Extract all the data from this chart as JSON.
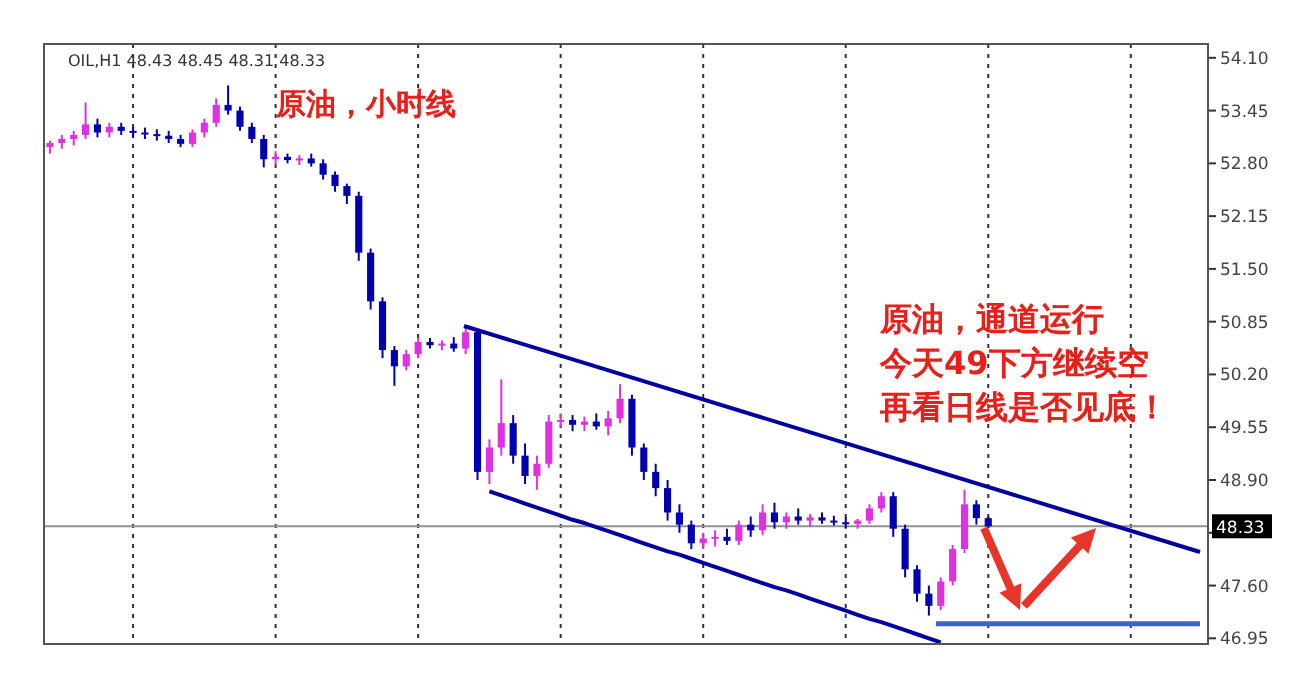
{
  "chart_data": {
    "type": "candlestick",
    "subtitle": "OIL,H1 48.43 48.45 48.31 48.33",
    "categories": [
      null,
      null,
      null,
      null,
      null,
      null,
      null,
      null,
      null,
      null,
      null,
      null,
      null,
      null,
      null,
      null,
      null,
      null,
      null,
      null,
      null,
      null,
      null,
      null,
      null,
      null,
      null,
      null,
      null,
      null,
      null,
      null,
      null,
      null,
      null,
      null,
      null,
      null,
      null,
      null,
      null,
      null,
      null,
      null,
      null,
      null,
      null,
      null,
      null,
      null,
      null,
      null,
      null,
      null,
      null,
      null,
      null,
      null,
      null,
      null,
      null,
      null,
      null,
      null,
      null,
      null,
      null,
      null,
      null,
      null,
      null,
      null,
      null,
      null,
      null,
      null,
      null,
      null,
      null,
      null,
      null,
      null,
      null,
      null,
      null,
      null,
      null,
      null,
      null,
      null,
      null,
      null,
      null,
      null,
      null,
      null,
      null,
      null
    ],
    "ohlc": [
      [
        53.0,
        53.08,
        52.92,
        53.05
      ],
      [
        53.05,
        53.15,
        52.98,
        53.1
      ],
      [
        53.1,
        53.2,
        53.02,
        53.15
      ],
      [
        53.15,
        53.55,
        53.1,
        53.28
      ],
      [
        53.28,
        53.35,
        53.12,
        53.18
      ],
      [
        53.18,
        53.3,
        53.12,
        53.25
      ],
      [
        53.25,
        53.3,
        53.15,
        53.2
      ],
      [
        53.2,
        53.25,
        53.12,
        53.18
      ],
      [
        53.18,
        53.24,
        53.1,
        53.16
      ],
      [
        53.16,
        53.22,
        53.08,
        53.14
      ],
      [
        53.14,
        53.2,
        53.05,
        53.1
      ],
      [
        53.1,
        53.15,
        53.0,
        53.04
      ],
      [
        53.04,
        53.22,
        53.0,
        53.18
      ],
      [
        53.18,
        53.35,
        53.12,
        53.3
      ],
      [
        53.3,
        53.6,
        53.25,
        53.52
      ],
      [
        53.52,
        53.76,
        53.4,
        53.45
      ],
      [
        53.45,
        53.5,
        53.2,
        53.25
      ],
      [
        53.25,
        53.3,
        53.05,
        53.1
      ],
      [
        53.1,
        53.15,
        52.75,
        52.85
      ],
      [
        52.85,
        52.95,
        52.78,
        52.88
      ],
      [
        52.88,
        52.92,
        52.8,
        52.84
      ],
      [
        52.84,
        52.9,
        52.78,
        52.86
      ],
      [
        52.86,
        52.92,
        52.76,
        52.8
      ],
      [
        52.8,
        52.85,
        52.6,
        52.66
      ],
      [
        52.66,
        52.7,
        52.45,
        52.52
      ],
      [
        52.52,
        52.55,
        52.3,
        52.4
      ],
      [
        52.4,
        52.45,
        51.6,
        51.7
      ],
      [
        51.7,
        51.75,
        51.0,
        51.1
      ],
      [
        51.1,
        51.15,
        50.4,
        50.5
      ],
      [
        50.5,
        50.55,
        50.06,
        50.3
      ],
      [
        50.3,
        50.5,
        50.25,
        50.45
      ],
      [
        50.45,
        50.65,
        50.4,
        50.6
      ],
      [
        50.6,
        50.65,
        50.52,
        50.56
      ],
      [
        50.56,
        50.62,
        50.5,
        50.58
      ],
      [
        50.58,
        50.66,
        50.48,
        50.52
      ],
      [
        50.52,
        50.8,
        50.45,
        50.72
      ],
      [
        50.72,
        50.76,
        48.9,
        49.0
      ],
      [
        49.0,
        49.4,
        48.85,
        49.3
      ],
      [
        49.3,
        50.14,
        49.2,
        49.6
      ],
      [
        49.6,
        49.7,
        49.1,
        49.2
      ],
      [
        49.2,
        49.35,
        48.85,
        48.95
      ],
      [
        48.95,
        49.2,
        48.78,
        49.1
      ],
      [
        49.1,
        49.7,
        49.05,
        49.62
      ],
      [
        49.62,
        49.72,
        49.55,
        49.64
      ],
      [
        49.64,
        49.7,
        49.5,
        49.58
      ],
      [
        49.58,
        49.68,
        49.5,
        49.62
      ],
      [
        49.62,
        49.72,
        49.52,
        49.56
      ],
      [
        49.56,
        49.75,
        49.45,
        49.66
      ],
      [
        49.66,
        50.08,
        49.6,
        49.9
      ],
      [
        49.9,
        49.95,
        49.2,
        49.3
      ],
      [
        49.3,
        49.35,
        48.9,
        49.0
      ],
      [
        49.0,
        49.1,
        48.7,
        48.8
      ],
      [
        48.8,
        48.9,
        48.4,
        48.5
      ],
      [
        48.5,
        48.6,
        48.25,
        48.35
      ],
      [
        48.35,
        48.4,
        48.05,
        48.12
      ],
      [
        48.12,
        48.25,
        48.05,
        48.18
      ],
      [
        48.18,
        48.28,
        48.08,
        48.2
      ],
      [
        48.2,
        48.3,
        48.1,
        48.15
      ],
      [
        48.15,
        48.4,
        48.1,
        48.35
      ],
      [
        48.35,
        48.45,
        48.2,
        48.28
      ],
      [
        48.28,
        48.6,
        48.22,
        48.5
      ],
      [
        48.5,
        48.62,
        48.3,
        48.38
      ],
      [
        48.38,
        48.5,
        48.3,
        48.45
      ],
      [
        48.45,
        48.55,
        48.35,
        48.4
      ],
      [
        48.4,
        48.48,
        48.32,
        48.44
      ],
      [
        48.44,
        48.5,
        48.36,
        48.4
      ],
      [
        48.4,
        48.46,
        48.34,
        48.38
      ],
      [
        48.38,
        48.44,
        48.3,
        48.36
      ],
      [
        48.36,
        48.42,
        48.3,
        48.4
      ],
      [
        48.4,
        48.6,
        48.36,
        48.55
      ],
      [
        48.55,
        48.75,
        48.5,
        48.7
      ],
      [
        48.7,
        48.75,
        48.2,
        48.3
      ],
      [
        48.3,
        48.35,
        47.7,
        47.8
      ],
      [
        47.8,
        47.85,
        47.4,
        47.5
      ],
      [
        47.5,
        47.6,
        47.23,
        47.35
      ],
      [
        47.35,
        47.7,
        47.3,
        47.65
      ],
      [
        47.65,
        48.1,
        47.6,
        48.05
      ],
      [
        48.05,
        48.78,
        48.0,
        48.6
      ],
      [
        48.6,
        48.65,
        48.35,
        48.43
      ],
      [
        48.43,
        48.45,
        48.31,
        48.33
      ],
      null,
      null,
      null,
      null,
      null,
      null,
      null,
      null,
      null,
      null,
      null,
      null,
      null,
      null,
      null,
      null,
      null,
      null
    ],
    "colors": [
      "#e030e0",
      "#e030e0",
      "#e030e0",
      "#e030e0",
      "#0000b0",
      "#e030e0",
      "#0000b0",
      "#0000b0",
      "#0000b0",
      "#0000b0",
      "#0000b0",
      "#0000b0",
      "#e030e0",
      "#e030e0",
      "#e030e0",
      "#0000b0",
      "#0000b0",
      "#0000b0",
      "#0000b0",
      "#e030e0",
      "#0000b0",
      "#e030e0",
      "#0000b0",
      "#0000b0",
      "#0000b0",
      "#0000b0",
      "#0000b0",
      "#0000b0",
      "#0000b0",
      "#0000b0",
      "#e030e0",
      "#e030e0",
      "#0000b0",
      "#e030e0",
      "#0000b0",
      "#e030e0",
      "#0000b0",
      "#e030e0",
      "#e030e0",
      "#0000b0",
      "#0000b0",
      "#e030e0",
      "#e030e0",
      "#e030e0",
      "#0000b0",
      "#e030e0",
      "#0000b0",
      "#e030e0",
      "#e030e0",
      "#0000b0",
      "#0000b0",
      "#0000b0",
      "#0000b0",
      "#0000b0",
      "#0000b0",
      "#e030e0",
      "#e030e0",
      "#0000b0",
      "#e030e0",
      "#0000b0",
      "#e030e0",
      "#0000b0",
      "#e030e0",
      "#0000b0",
      "#e030e0",
      "#0000b0",
      "#0000b0",
      "#0000b0",
      "#e030e0",
      "#e030e0",
      "#e030e0",
      "#0000b0",
      "#0000b0",
      "#0000b0",
      "#0000b0",
      "#e030e0",
      "#e030e0",
      "#e030e0",
      "#0000b0",
      "#0000b0",
      null,
      null,
      null,
      null,
      null,
      null,
      null,
      null,
      null,
      null,
      null,
      null,
      null,
      null,
      null,
      null,
      null,
      null
    ],
    "ylim": [
      46.88,
      54.27
    ],
    "yticks": [
      {
        "value": 46.95,
        "label": "46.95"
      },
      {
        "value": 47.6,
        "label": "47.60"
      },
      {
        "value": 48.25,
        "label": null
      },
      {
        "value": 48.9,
        "label": "48.90"
      },
      {
        "value": 49.55,
        "label": "49.55"
      },
      {
        "value": 50.2,
        "label": "50.20"
      },
      {
        "value": 50.85,
        "label": "50.85"
      },
      {
        "value": 51.5,
        "label": "51.50"
      },
      {
        "value": 52.15,
        "label": "52.15"
      },
      {
        "value": 52.8,
        "label": "52.80"
      },
      {
        "value": 53.45,
        "label": "53.45"
      },
      {
        "value": 54.1,
        "label": "54.10"
      }
    ],
    "tick_labels": "y",
    "grid": "x",
    "ref_lines": [
      {
        "axis": "y",
        "value": 48.33,
        "label": "48.33",
        "color": "#909090"
      },
      {
        "axis": "y",
        "value": 47.13,
        "color": "#4060d0"
      }
    ],
    "series": [
      {
        "type": "line",
        "color": "#0000a0",
        "values": [
          null,
          null,
          null,
          null,
          null,
          null,
          null,
          null,
          null,
          null,
          null,
          null,
          null,
          null,
          null,
          null,
          null,
          null,
          null,
          null,
          null,
          null,
          null,
          null,
          null,
          null,
          null,
          null,
          null,
          null,
          null,
          null,
          null,
          null,
          null,
          null,
          null,
          48.76,
          48.71,
          48.66,
          48.61,
          48.56,
          48.51,
          48.46,
          48.41,
          48.37,
          48.32,
          48.27,
          48.22,
          48.17,
          48.12,
          48.07,
          48.02,
          47.98,
          47.93,
          47.88,
          47.83,
          47.78,
          47.73,
          47.68,
          47.63,
          47.58,
          47.54,
          47.49,
          47.44,
          47.39,
          47.34,
          47.29,
          47.24,
          47.19,
          47.15,
          47.1,
          47.05,
          47.0,
          46.95,
          46.9,
          null,
          null,
          null,
          null,
          null,
          null,
          null,
          null,
          null,
          null,
          null,
          null,
          null,
          null,
          null,
          null,
          null,
          null,
          null,
          null,
          null,
          null
        ]
      }
    ],
    "annotations": [
      "原油，小时线",
      "原油，通道运行",
      "今天49下方继续空",
      "再看日线是否见底！"
    ]
  }
}
